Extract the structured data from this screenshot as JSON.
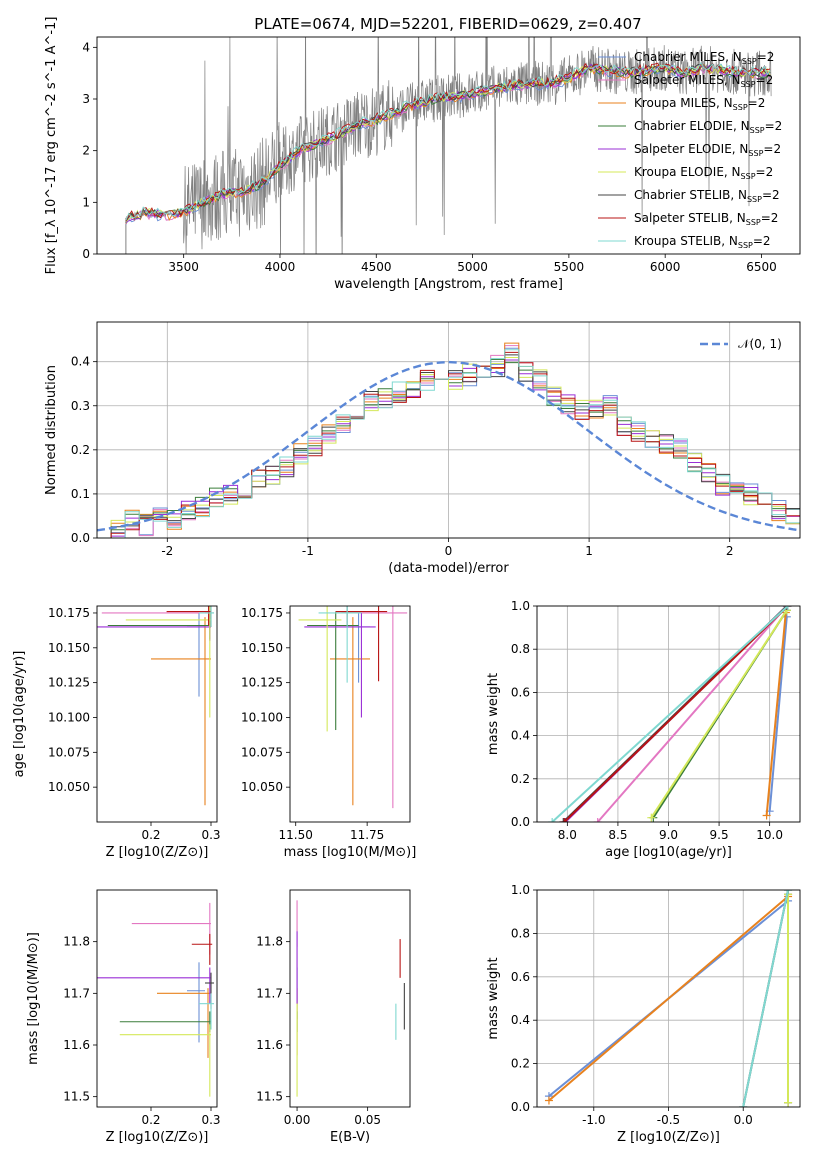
{
  "figure": {
    "title": "PLATE=0674, MJD=52201, FIBERID=0629, z=0.407"
  },
  "colors": {
    "Chabrier MILES": "#6b8fd6",
    "Salpeter MILES": "#e377c2",
    "Kroupa MILES": "#e8821e",
    "Chabrier ELODIE": "#3a7d3a",
    "Salpeter ELODIE": "#9a2fd6",
    "Kroupa ELODIE": "#d4e85a",
    "Chabrier STELIB": "#444444",
    "Salpeter STELIB": "#b81414",
    "Kroupa STELIB": "#7fd8d0",
    "data": "#808080",
    "normal": "#5b87d6"
  },
  "chart_data": [
    {
      "id": "spectrum",
      "type": "line",
      "title": "PLATE=0674, MJD=52201, FIBERID=0629, z=0.407",
      "xlabel": "wavelength [Angstrom, rest frame]",
      "ylabel": "Flux [f_λ 10^-17 erg cm^-2 s^-1 A^-1]",
      "xlim": [
        3050,
        6700
      ],
      "ylim": [
        0,
        4.2
      ],
      "xticks": [
        3500,
        4000,
        4500,
        5000,
        5500,
        6000,
        6500
      ],
      "yticks": [
        0,
        1,
        2,
        3,
        4
      ],
      "legend": "right",
      "continuum": {
        "x": [
          3200,
          3300,
          3400,
          3500,
          3600,
          3700,
          3800,
          3900,
          4000,
          4100,
          4200,
          4300,
          4400,
          4500,
          4600,
          4700,
          4800,
          4900,
          5000,
          5100,
          5200,
          5300,
          5400,
          5500,
          5600,
          5700,
          5800,
          5900,
          6000,
          6100,
          6200,
          6300,
          6400,
          6500
        ],
        "y": [
          0.7,
          0.8,
          0.75,
          0.8,
          1.0,
          1.15,
          1.2,
          1.35,
          1.7,
          2.0,
          2.15,
          2.3,
          2.5,
          2.6,
          2.75,
          2.9,
          3.0,
          3.05,
          3.1,
          3.2,
          3.25,
          3.3,
          3.3,
          3.4,
          3.6,
          3.55,
          3.5,
          3.55,
          3.6,
          3.5,
          3.6,
          3.55,
          3.5,
          3.5
        ]
      },
      "series": [
        {
          "name": "Chabrier MILES, N_SSP=2"
        },
        {
          "name": "Salpeter MILES, N_SSP=2"
        },
        {
          "name": "Kroupa MILES, N_SSP=2"
        },
        {
          "name": "Chabrier ELODIE, N_SSP=2"
        },
        {
          "name": "Salpeter ELODIE, N_SSP=2"
        },
        {
          "name": "Kroupa ELODIE, N_SSP=2"
        },
        {
          "name": "Chabrier STELIB, N_SSP=2"
        },
        {
          "name": "Salpeter STELIB, N_SSP=2"
        },
        {
          "name": "Kroupa STELIB, N_SSP=2"
        }
      ]
    },
    {
      "id": "residuals",
      "type": "line",
      "xlabel": "(data-model)/error",
      "ylabel": "Normed distribution",
      "xlim": [
        -2.5,
        2.5
      ],
      "ylim": [
        0,
        0.49
      ],
      "xticks": [
        -2,
        -1,
        0,
        1,
        2
      ],
      "yticks": [
        0.0,
        0.1,
        0.2,
        0.3,
        0.4
      ],
      "legend": "top-right",
      "legend_label": "𝒩(0, 1)",
      "grid": true,
      "bin_width": 0.1,
      "histogram_centers": [
        -2.45,
        -2.35,
        -2.25,
        -2.15,
        -2.05,
        -1.95,
        -1.85,
        -1.75,
        -1.65,
        -1.55,
        -1.45,
        -1.35,
        -1.25,
        -1.15,
        -1.05,
        -0.95,
        -0.85,
        -0.75,
        -0.65,
        -0.55,
        -0.45,
        -0.35,
        -0.25,
        -0.15,
        -0.05,
        0.05,
        0.15,
        0.25,
        0.35,
        0.45,
        0.55,
        0.65,
        0.75,
        0.85,
        0.95,
        1.05,
        1.15,
        1.25,
        1.35,
        1.45,
        1.55,
        1.65,
        1.75,
        1.85,
        1.95,
        2.05,
        2.15,
        2.25,
        2.35,
        2.45
      ],
      "histogram_mean": [
        0.01,
        0.015,
        0.04,
        0.03,
        0.05,
        0.04,
        0.06,
        0.07,
        0.09,
        0.1,
        0.11,
        0.13,
        0.14,
        0.16,
        0.19,
        0.21,
        0.24,
        0.26,
        0.29,
        0.31,
        0.32,
        0.33,
        0.34,
        0.36,
        0.37,
        0.36,
        0.37,
        0.38,
        0.39,
        0.42,
        0.38,
        0.36,
        0.32,
        0.3,
        0.29,
        0.29,
        0.3,
        0.25,
        0.24,
        0.23,
        0.21,
        0.2,
        0.17,
        0.15,
        0.12,
        0.11,
        0.1,
        0.09,
        0.06,
        0.05
      ]
    },
    {
      "id": "age-vs-Z",
      "type": "scatter",
      "xlabel": "Z [log10(Z/Z⊙)]",
      "ylabel": "age [log10(age/yr)]",
      "xlim": [
        0.11,
        0.31
      ],
      "ylim": [
        10.025,
        10.18
      ],
      "xticks": [
        0.2,
        0.3
      ],
      "yticks": [
        10.05,
        10.075,
        10.1,
        10.125,
        10.15,
        10.175
      ],
      "points": [
        {
          "series": "Chabrier MILES",
          "x": 0.28,
          "y": 10.165,
          "xerr": [
            0.02,
            0.01
          ],
          "yerr": [
            0.05,
            0.01
          ]
        },
        {
          "series": "Salpeter MILES",
          "x": 0.298,
          "y": 10.175,
          "xerr": [
            0.18,
            0.002
          ],
          "yerr": [
            0.01,
            0.01
          ]
        },
        {
          "series": "Kroupa MILES",
          "x": 0.29,
          "y": 10.142,
          "xerr": [
            0.09,
            0.01
          ],
          "yerr": [
            0.105,
            0.03
          ]
        },
        {
          "series": "Chabrier ELODIE",
          "x": 0.298,
          "y": 10.166,
          "xerr": [
            0.17,
            0.002
          ],
          "yerr": [
            0.01,
            0.01
          ]
        },
        {
          "series": "Salpeter ELODIE",
          "x": 0.298,
          "y": 10.165,
          "xerr": [
            0.2,
            0.002
          ],
          "yerr": [
            0.01,
            0.01
          ]
        },
        {
          "series": "Kroupa ELODIE",
          "x": 0.298,
          "y": 10.17,
          "xerr": [
            0.14,
            0.002
          ],
          "yerr": [
            0.07,
            0.01
          ]
        },
        {
          "series": "Chabrier STELIB",
          "x": 0.3,
          "y": 10.175,
          "xerr": [
            0.01,
            0.005
          ],
          "yerr": [
            0.01,
            0.01
          ]
        },
        {
          "series": "Salpeter STELIB",
          "x": 0.296,
          "y": 10.176,
          "xerr": [
            0.07,
            0.004
          ],
          "yerr": [
            0.01,
            0.01
          ]
        },
        {
          "series": "Kroupa STELIB",
          "x": 0.3,
          "y": 10.175,
          "xerr": [
            0.02,
            0.005
          ],
          "yerr": [
            0.01,
            0.01
          ]
        }
      ]
    },
    {
      "id": "age-vs-mass",
      "type": "scatter",
      "xlabel": "mass [log10(M/M⊙)]",
      "ylabel": "",
      "xlim": [
        11.48,
        11.9
      ],
      "ylim": [
        10.025,
        10.18
      ],
      "xticks": [
        11.5,
        11.75
      ],
      "yticks": [
        10.05,
        10.075,
        10.1,
        10.125,
        10.15,
        10.175
      ],
      "points": [
        {
          "series": "Chabrier MILES",
          "x": 11.72,
          "y": 10.165,
          "xerr": [
            0.04,
            0.04
          ],
          "yerr": [
            0.04,
            0.01
          ]
        },
        {
          "series": "Salpeter MILES",
          "x": 11.84,
          "y": 10.175,
          "xerr": [
            0.2,
            0.05
          ],
          "yerr": [
            0.14,
            0.01
          ]
        },
        {
          "series": "Kroupa MILES",
          "x": 11.7,
          "y": 10.142,
          "xerr": [
            0.08,
            0.06
          ],
          "yerr": [
            0.105,
            0.03
          ]
        },
        {
          "series": "Chabrier ELODIE",
          "x": 11.64,
          "y": 10.166,
          "xerr": [
            0.1,
            0.08
          ],
          "yerr": [
            0.075,
            0.01
          ]
        },
        {
          "series": "Salpeter ELODIE",
          "x": 11.73,
          "y": 10.165,
          "xerr": [
            0.2,
            0.05
          ],
          "yerr": [
            0.065,
            0.01
          ]
        },
        {
          "series": "Kroupa ELODIE",
          "x": 11.61,
          "y": 10.17,
          "xerr": [
            0.1,
            0.05
          ],
          "yerr": [
            0.08,
            0.01
          ]
        },
        {
          "series": "Chabrier STELIB",
          "x": 11.68,
          "y": 10.175,
          "xerr": [
            0.02,
            0.05
          ],
          "yerr": [
            0.01,
            0.01
          ]
        },
        {
          "series": "Salpeter STELIB",
          "x": 11.79,
          "y": 10.176,
          "xerr": [
            0.15,
            0.03
          ],
          "yerr": [
            0.05,
            0.01
          ]
        },
        {
          "series": "Kroupa STELIB",
          "x": 11.68,
          "y": 10.175,
          "xerr": [
            0.1,
            0.05
          ],
          "yerr": [
            0.05,
            0.01
          ]
        }
      ]
    },
    {
      "id": "mass-weight-vs-age",
      "type": "line",
      "xlabel": "age [log10(age/yr)]",
      "ylabel": "mass weight",
      "xlim": [
        7.7,
        10.3
      ],
      "ylim": [
        0,
        1
      ],
      "xticks": [
        8.0,
        8.5,
        9.0,
        9.5,
        10.0
      ],
      "yticks": [
        0.0,
        0.2,
        0.4,
        0.6,
        0.8,
        1.0
      ],
      "grid": true,
      "series": [
        {
          "series": "Chabrier MILES",
          "x": [
            10.0,
            10.17
          ],
          "y": [
            0.05,
            0.95
          ]
        },
        {
          "series": "Salpeter MILES",
          "x": [
            8.3,
            10.17
          ],
          "y": [
            0.0,
            1.0
          ]
        },
        {
          "series": "Kroupa MILES",
          "x": [
            9.97,
            10.16
          ],
          "y": [
            0.03,
            0.97
          ]
        },
        {
          "series": "Chabrier ELODIE",
          "x": [
            8.85,
            10.17
          ],
          "y": [
            0.02,
            0.98
          ]
        },
        {
          "series": "Salpeter ELODIE",
          "x": [
            7.98,
            10.17
          ],
          "y": [
            0.0,
            1.0
          ]
        },
        {
          "series": "Kroupa ELODIE",
          "x": [
            8.83,
            10.17
          ],
          "y": [
            0.02,
            0.98
          ]
        },
        {
          "series": "Chabrier STELIB",
          "x": [
            7.96,
            10.17
          ],
          "y": [
            0.0,
            1.0
          ]
        },
        {
          "series": "Salpeter STELIB",
          "x": [
            7.97,
            10.18
          ],
          "y": [
            0.0,
            1.0
          ]
        },
        {
          "series": "Kroupa STELIB",
          "x": [
            7.85,
            10.18
          ],
          "y": [
            0.0,
            1.0
          ]
        }
      ]
    },
    {
      "id": "mass-vs-Z",
      "type": "scatter",
      "xlabel": "Z [log10(Z/Z⊙)]",
      "ylabel": "mass [log10(M/M⊙)]",
      "xlim": [
        0.11,
        0.31
      ],
      "ylim": [
        11.48,
        11.9
      ],
      "xticks": [
        0.2,
        0.3
      ],
      "yticks": [
        11.5,
        11.6,
        11.7,
        11.8
      ],
      "points": [
        {
          "series": "Chabrier MILES",
          "x": 0.28,
          "y": 11.705,
          "xerr": [
            0.02,
            0.01
          ],
          "yerr": [
            0.1,
            0.055
          ]
        },
        {
          "series": "Salpeter MILES",
          "x": 0.298,
          "y": 11.835,
          "xerr": [
            0.13,
            0.002
          ],
          "yerr": [
            0.06,
            0.04
          ]
        },
        {
          "series": "Kroupa MILES",
          "x": 0.295,
          "y": 11.7,
          "xerr": [
            0.085,
            0.005
          ],
          "yerr": [
            0.125,
            0.01
          ]
        },
        {
          "series": "Chabrier ELODIE",
          "x": 0.298,
          "y": 11.645,
          "xerr": [
            0.15,
            0.002
          ],
          "yerr": [
            0.02,
            0.02
          ]
        },
        {
          "series": "Salpeter ELODIE",
          "x": 0.298,
          "y": 11.73,
          "xerr": [
            0.2,
            0.002
          ],
          "yerr": [
            0.05,
            0.02
          ]
        },
        {
          "series": "Kroupa ELODIE",
          "x": 0.298,
          "y": 11.62,
          "xerr": [
            0.15,
            0.002
          ],
          "yerr": [
            0.12,
            0.02
          ]
        },
        {
          "series": "Chabrier STELIB",
          "x": 0.3,
          "y": 11.72,
          "xerr": [
            0.01,
            0.005
          ],
          "yerr": [
            0.05,
            0.02
          ]
        },
        {
          "series": "Salpeter STELIB",
          "x": 0.298,
          "y": 11.795,
          "xerr": [
            0.03,
            0.004
          ],
          "yerr": [
            0.04,
            0.02
          ]
        },
        {
          "series": "Kroupa STELIB",
          "x": 0.3,
          "y": 11.68,
          "xerr": [
            0.02,
            0.005
          ],
          "yerr": [
            0.05,
            0.02
          ]
        }
      ]
    },
    {
      "id": "mass-vs-ebv",
      "type": "scatter",
      "xlabel": "E(B-V)",
      "ylabel": "",
      "xlim": [
        -0.005,
        0.08
      ],
      "ylim": [
        11.48,
        11.9
      ],
      "xticks": [
        0.0,
        0.05
      ],
      "yticks": [
        11.5,
        11.6,
        11.7,
        11.8
      ],
      "points": [
        {
          "series": "Chabrier MILES",
          "x": 0.0,
          "y": 11.7,
          "xerr": [
            0,
            0
          ],
          "yerr": [
            0.05,
            0.05
          ]
        },
        {
          "series": "Salpeter MILES",
          "x": 0.0,
          "y": 11.84,
          "xerr": [
            0,
            0
          ],
          "yerr": [
            0.05,
            0.04
          ]
        },
        {
          "series": "Kroupa MILES",
          "x": 0.0,
          "y": 11.69,
          "xerr": [
            0,
            0
          ],
          "yerr": [
            0.11,
            0.02
          ]
        },
        {
          "series": "Chabrier ELODIE",
          "x": 0.0,
          "y": 11.645,
          "xerr": [
            0,
            0
          ],
          "yerr": [
            0.02,
            0.02
          ]
        },
        {
          "series": "Salpeter ELODIE",
          "x": 0.0,
          "y": 11.76,
          "xerr": [
            0,
            0
          ],
          "yerr": [
            0.08,
            0.06
          ]
        },
        {
          "series": "Kroupa ELODIE",
          "x": 0.0,
          "y": 11.58,
          "xerr": [
            0,
            0
          ],
          "yerr": [
            0.08,
            0.1
          ]
        },
        {
          "series": "Chabrier STELIB",
          "x": 0.076,
          "y": 11.675,
          "xerr": [
            0,
            0
          ],
          "yerr": [
            0.045,
            0.045
          ]
        },
        {
          "series": "Salpeter STELIB",
          "x": 0.073,
          "y": 11.765,
          "xerr": [
            0,
            0
          ],
          "yerr": [
            0.035,
            0.04
          ]
        },
        {
          "series": "Kroupa STELIB",
          "x": 0.07,
          "y": 11.64,
          "xerr": [
            0,
            0
          ],
          "yerr": [
            0.03,
            0.04
          ]
        }
      ]
    },
    {
      "id": "mass-weight-vs-Z",
      "type": "line",
      "xlabel": "Z [log10(Z/Z⊙)]",
      "ylabel": "mass weight",
      "xlim": [
        -1.38,
        0.38
      ],
      "ylim": [
        0,
        1
      ],
      "xticks": [
        -1.0,
        -0.5,
        0.0
      ],
      "yticks": [
        0.0,
        0.2,
        0.4,
        0.6,
        0.8,
        1.0
      ],
      "grid": true,
      "series": [
        {
          "series": "Chabrier MILES",
          "x": [
            -1.3,
            0.3
          ],
          "y": [
            0.05,
            0.95
          ]
        },
        {
          "series": "Kroupa MILES",
          "x": [
            -1.3,
            0.3
          ],
          "y": [
            0.03,
            0.97
          ]
        },
        {
          "series": "Salpeter MILES",
          "x": [
            0.3,
            0.3
          ],
          "y": [
            0.02,
            0.98
          ]
        },
        {
          "series": "Chabrier ELODIE",
          "x": [
            0.3,
            0.3
          ],
          "y": [
            0.02,
            0.98
          ]
        },
        {
          "series": "Kroupa ELODIE",
          "x": [
            0.3,
            0.3
          ],
          "y": [
            0.02,
            0.98
          ]
        },
        {
          "series": "Chabrier STELIB",
          "x": [
            0.0,
            0.3
          ],
          "y": [
            0.0,
            1.0
          ]
        },
        {
          "series": "Kroupa STELIB",
          "x": [
            0.0,
            0.3
          ],
          "y": [
            0.0,
            1.0
          ]
        }
      ]
    }
  ]
}
